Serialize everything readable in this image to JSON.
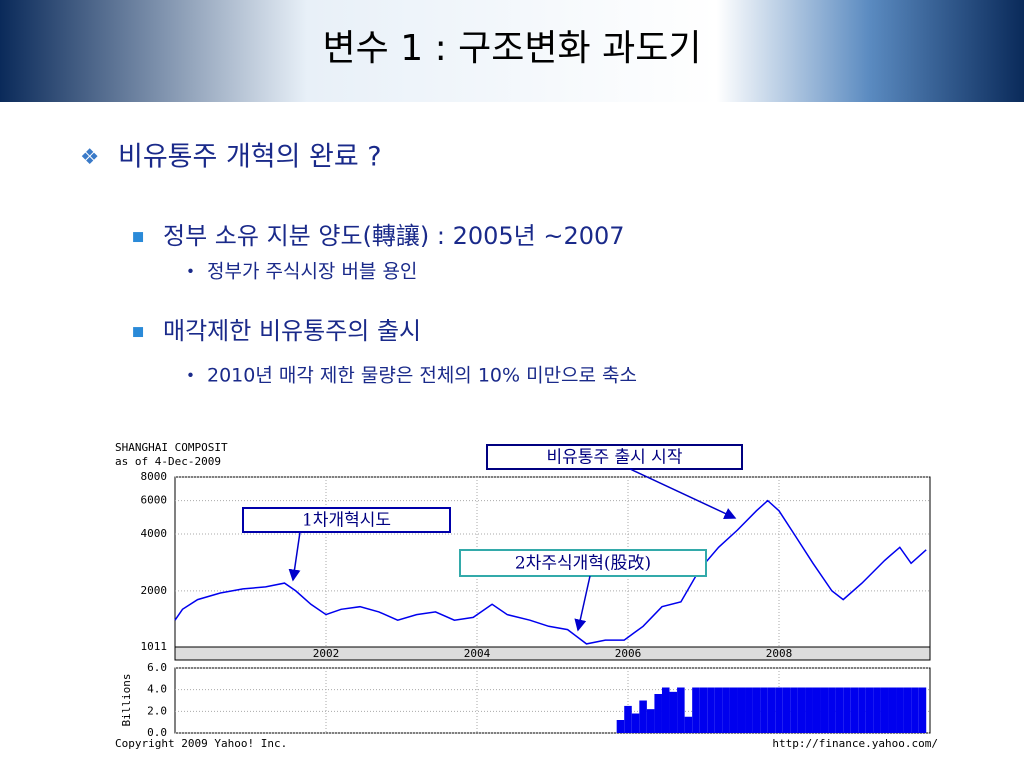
{
  "slide": {
    "title": "변수 1 : 구조변화 과도기",
    "bullets": [
      {
        "level": 1,
        "text": "비유통주 개혁의 완료 ?"
      },
      {
        "level": 2,
        "text": "정부 소유 지분 양도(轉讓) : 2005년 ~2007"
      },
      {
        "level": 3,
        "text": "정부가 주식시장 버블 용인"
      },
      {
        "level": 2,
        "text": "매각제한 비유통주의 출시"
      },
      {
        "level": 3,
        "text": "2010년 매각 제한 물량은 전체의 10% 미만으로 축소"
      }
    ]
  },
  "chart_data": {
    "type": "line",
    "title": "SHANGHAI COMPOSIT",
    "subtitle": "as of 4-Dec-2009",
    "x": [
      2000.0,
      2000.1,
      2000.3,
      2000.6,
      2000.9,
      2001.2,
      2001.45,
      2001.6,
      2001.8,
      2002.0,
      2002.2,
      2002.45,
      2002.7,
      2002.95,
      2003.2,
      2003.45,
      2003.7,
      2003.95,
      2004.2,
      2004.4,
      2004.7,
      2004.95,
      2005.2,
      2005.45,
      2005.7,
      2005.95,
      2006.2,
      2006.45,
      2006.7,
      2006.95,
      2007.2,
      2007.45,
      2007.7,
      2007.85,
      2008.0,
      2008.2,
      2008.45,
      2008.7,
      2008.85,
      2009.1,
      2009.4,
      2009.6,
      2009.75,
      2009.95
    ],
    "values": [
      1400,
      1600,
      1800,
      1950,
      2050,
      2100,
      2200,
      2000,
      1700,
      1500,
      1600,
      1650,
      1550,
      1400,
      1500,
      1550,
      1400,
      1450,
      1700,
      1500,
      1400,
      1300,
      1250,
      1050,
      1100,
      1100,
      1300,
      1650,
      1750,
      2600,
      3400,
      4200,
      5300,
      6000,
      5300,
      4000,
      2800,
      2000,
      1800,
      2200,
      2900,
      3400,
      2800,
      3300
    ],
    "color": "#0000ee",
    "log_y": true,
    "grid": true,
    "xlim": [
      2000,
      2010
    ],
    "xticks": [
      2002,
      2004,
      2006,
      2008
    ],
    "ylim": [
      1011,
      8000
    ],
    "yticks": [
      1011,
      2000,
      4000,
      6000,
      8000
    ],
    "annotations": [
      {
        "text": "1차개혁시도",
        "color": "#0000aa"
      },
      {
        "text": "2차주식개혁(股改)",
        "color": "#33aaaa"
      },
      {
        "text": "비유통주 출시 시작",
        "color": "#000080"
      }
    ],
    "volume": {
      "type": "bar",
      "ylabel": "Billions",
      "color": "#0000ee",
      "x": [
        2005.9,
        2006.0,
        2006.1,
        2006.2,
        2006.3,
        2006.4,
        2006.5,
        2006.6,
        2006.7,
        2006.8,
        2006.9,
        2007.0,
        2007.1,
        2007.2,
        2007.3,
        2007.4,
        2007.5,
        2007.6,
        2007.7,
        2007.8,
        2007.9,
        2008.0,
        2008.1,
        2008.2,
        2008.3,
        2008.4,
        2008.5,
        2008.6,
        2008.7,
        2008.8,
        2008.9,
        2009.0,
        2009.1,
        2009.2,
        2009.3,
        2009.4,
        2009.5,
        2009.6,
        2009.7,
        2009.8,
        2009.9
      ],
      "values": [
        1.2,
        2.5,
        1.8,
        3.0,
        2.2,
        3.6,
        4.2,
        3.8,
        4.2,
        1.5,
        4.2,
        4.2,
        4.2,
        4.2,
        4.2,
        4.2,
        4.2,
        4.2,
        4.2,
        4.2,
        4.2,
        4.2,
        4.2,
        4.2,
        4.2,
        4.2,
        4.2,
        4.2,
        4.2,
        4.2,
        4.2,
        4.2,
        4.2,
        4.2,
        4.2,
        4.2,
        4.2,
        4.2,
        4.2,
        4.2,
        4.2
      ],
      "ylim": [
        0,
        6
      ],
      "yticks": [
        {
          "value": 0,
          "label": "0.0"
        },
        {
          "value": 2,
          "label": "2.0"
        },
        {
          "value": 4,
          "label": "4.0"
        },
        {
          "value": 6,
          "label": "6.0"
        }
      ]
    },
    "copyright": "Copyright 2009 Yahoo! Inc.",
    "source": "http://finance.yahoo.com/"
  }
}
